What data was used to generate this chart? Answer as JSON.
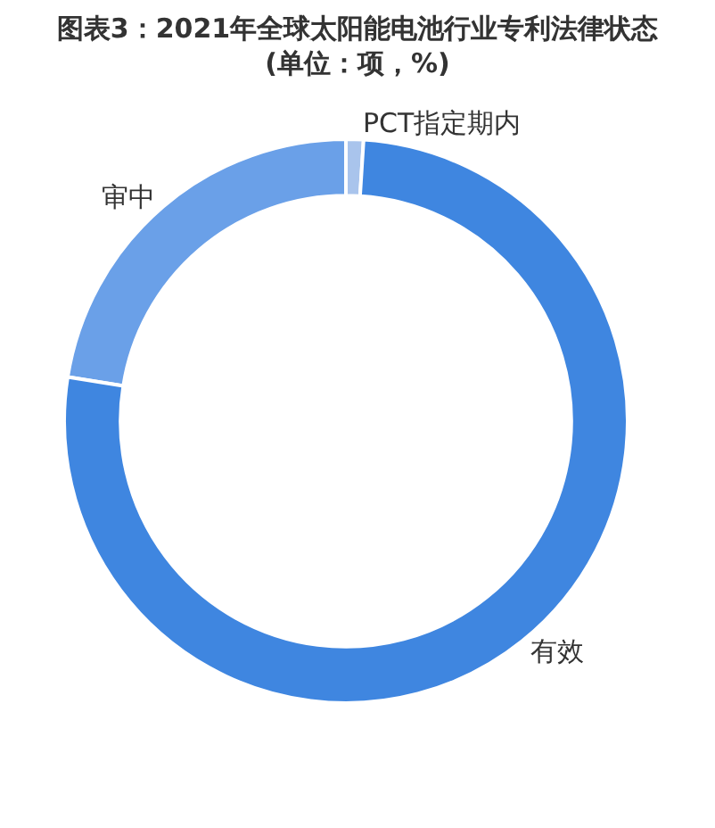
{
  "chart_data": {
    "type": "donut",
    "title": "图表3：2021年全球太阳能电池行业专利法律状态\n(单位：项，%)",
    "categories": [
      "PCT指定期内",
      "审中",
      "有效"
    ],
    "values": [
      1,
      22.5,
      76.5
    ],
    "colors": [
      "#a9c4ec",
      "#6aa0e8",
      "#3f86e0"
    ],
    "legend": false
  }
}
